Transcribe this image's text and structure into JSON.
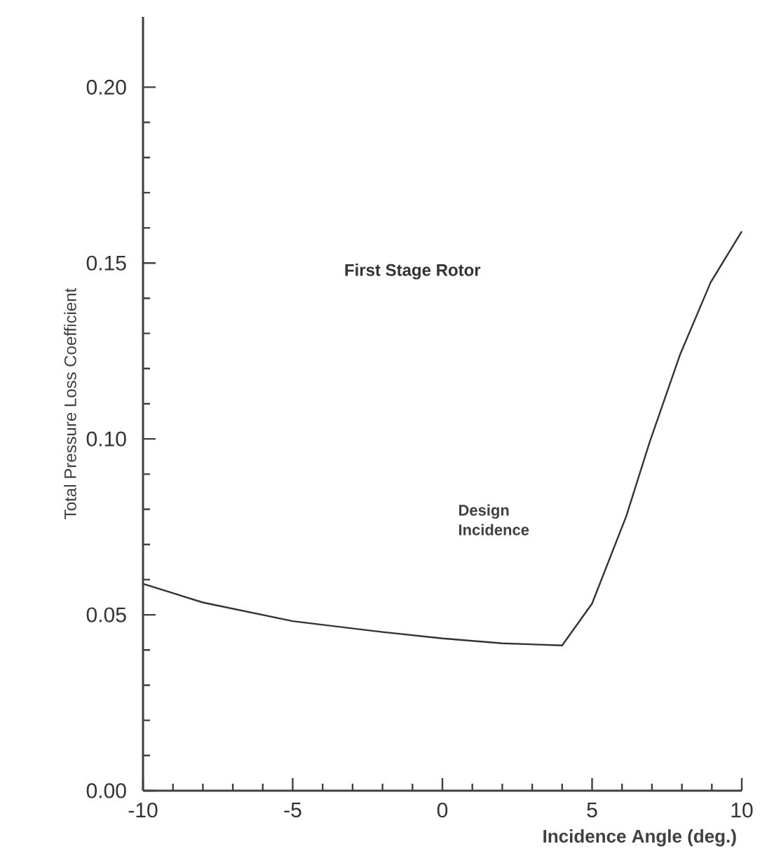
{
  "chart_data": {
    "type": "line",
    "title": "First Stage Rotor",
    "xlabel": "Incidence Angle (deg.)",
    "ylabel": "Total Pressure Loss Coefficient",
    "annotations": [
      "Design Incidence"
    ],
    "x": [
      -10,
      -8,
      -5,
      -2,
      0,
      2,
      4,
      5,
      6.14,
      6.92,
      7.94,
      8.96,
      10
    ],
    "series": [
      {
        "color": "#333333",
        "values": [
          0.0588,
          0.0535,
          0.0482,
          0.0451,
          0.0433,
          0.0419,
          0.0413,
          0.0532,
          0.078,
          0.099,
          0.124,
          0.1445,
          0.159
        ]
      }
    ],
    "xlim": [
      -10,
      10
    ],
    "ylim": [
      0,
      0.22
    ],
    "xticks": [
      -10,
      -5,
      0,
      5,
      10
    ],
    "yticks": [
      {
        "value": 0,
        "label": "0.00"
      },
      {
        "value": 0.05,
        "label": "0.05"
      },
      {
        "value": 0.1,
        "label": "0.10"
      },
      {
        "value": 0.15,
        "label": "0.15"
      },
      {
        "value": 0.2,
        "label": "0.20"
      }
    ],
    "grid": false,
    "marker": "none",
    "line_style": "solid"
  }
}
